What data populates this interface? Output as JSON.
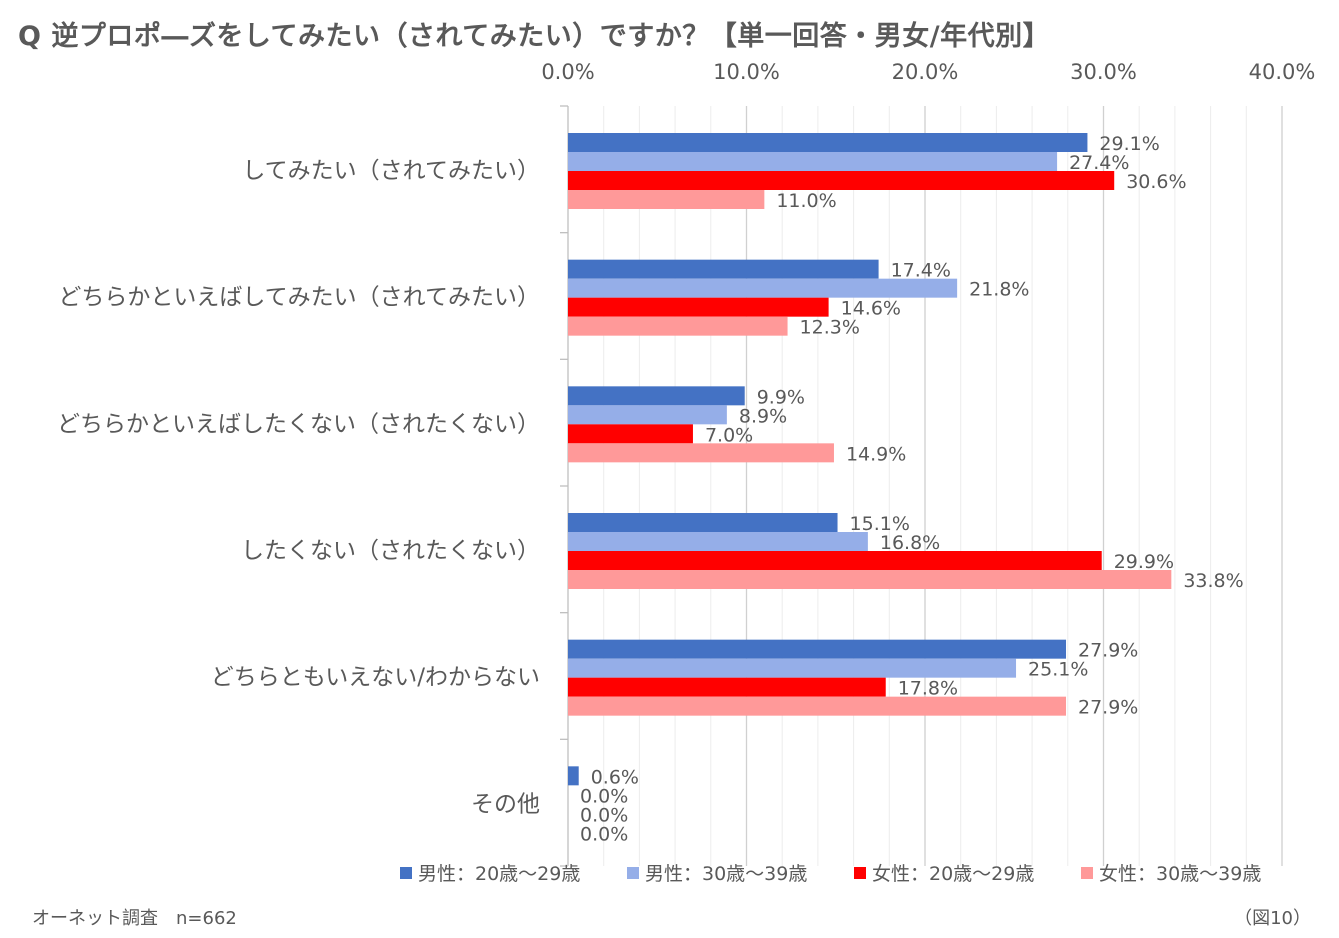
{
  "title": "Q 逆プロポ―ズをしてみたい（されてみたい）ですか？【単一回答・男女/年代別】",
  "source_note": "オーネット調査　n=662",
  "figure_label": "（図10）",
  "chart_data": {
    "type": "bar",
    "orientation": "horizontal",
    "categories": [
      "してみたい（されてみたい）",
      "どちらかといえばしてみたい（されてみたい）",
      "どちらかといえばしたくない（されたくない）",
      "したくない（されたくない）",
      "どちらともいえない/わからない",
      "その他"
    ],
    "series": [
      {
        "name": "男性：20歳～29歳",
        "color": "#4472c4",
        "values": [
          29.1,
          17.4,
          9.9,
          15.1,
          27.9,
          0.6
        ]
      },
      {
        "name": "男性：30歳～39歳",
        "color": "#95aee8",
        "values": [
          27.4,
          21.8,
          8.9,
          16.8,
          25.1,
          0.0
        ]
      },
      {
        "name": "女性：20歳～29歳",
        "color": "#ff0000",
        "values": [
          30.6,
          14.6,
          7.0,
          29.9,
          17.8,
          0.0
        ]
      },
      {
        "name": "女性：30歳～39歳",
        "color": "#ff9999",
        "values": [
          11.0,
          12.3,
          14.9,
          33.8,
          27.9,
          0.0
        ]
      }
    ],
    "xlim": [
      0,
      40
    ],
    "xticks": [
      0,
      10,
      20,
      30,
      40
    ],
    "tick_labels": [
      "0.0%",
      "10.0%",
      "20.0%",
      "30.0%",
      "40.0%"
    ],
    "value_suffix": "%",
    "legend_position": "bottom",
    "grid": true
  }
}
